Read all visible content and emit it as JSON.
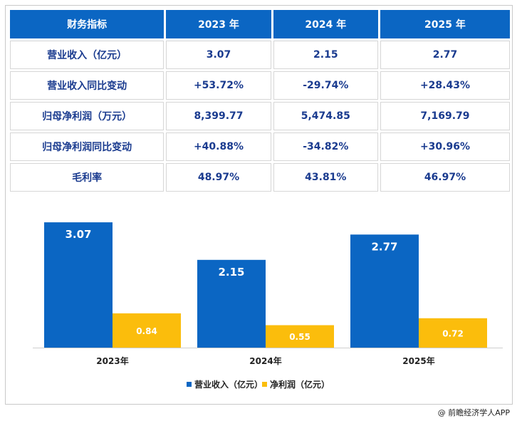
{
  "table": {
    "header": [
      "财务指标",
      "2023 年",
      "2024 年",
      "2025 年"
    ],
    "rows": [
      [
        "营业收入（亿元）",
        "3.07",
        "2.15",
        "2.77"
      ],
      [
        "营业收入同比变动",
        "+53.72%",
        "-29.74%",
        "+28.43%"
      ],
      [
        "归母净利润（万元）",
        "8,399.77",
        "5,474.85",
        "7,169.79"
      ],
      [
        "归母净利润同比变动",
        "+40.88%",
        "-34.82%",
        "+30.96%"
      ],
      [
        "毛利率",
        "48.97%",
        "43.81%",
        "46.97%"
      ]
    ]
  },
  "chart_data": {
    "type": "bar",
    "categories": [
      "2023年",
      "2024年",
      "2025年"
    ],
    "series": [
      {
        "name": "营业收入（亿元）",
        "values": [
          3.07,
          2.15,
          2.77
        ],
        "color": "#0b66c3"
      },
      {
        "name": "净利润（亿元）",
        "values": [
          0.84,
          0.55,
          0.72
        ],
        "color": "#fbbd0c"
      }
    ],
    "legend_position": "bottom",
    "grid": false
  },
  "footer": {
    "source": "@ 前瞻经济学人APP"
  }
}
